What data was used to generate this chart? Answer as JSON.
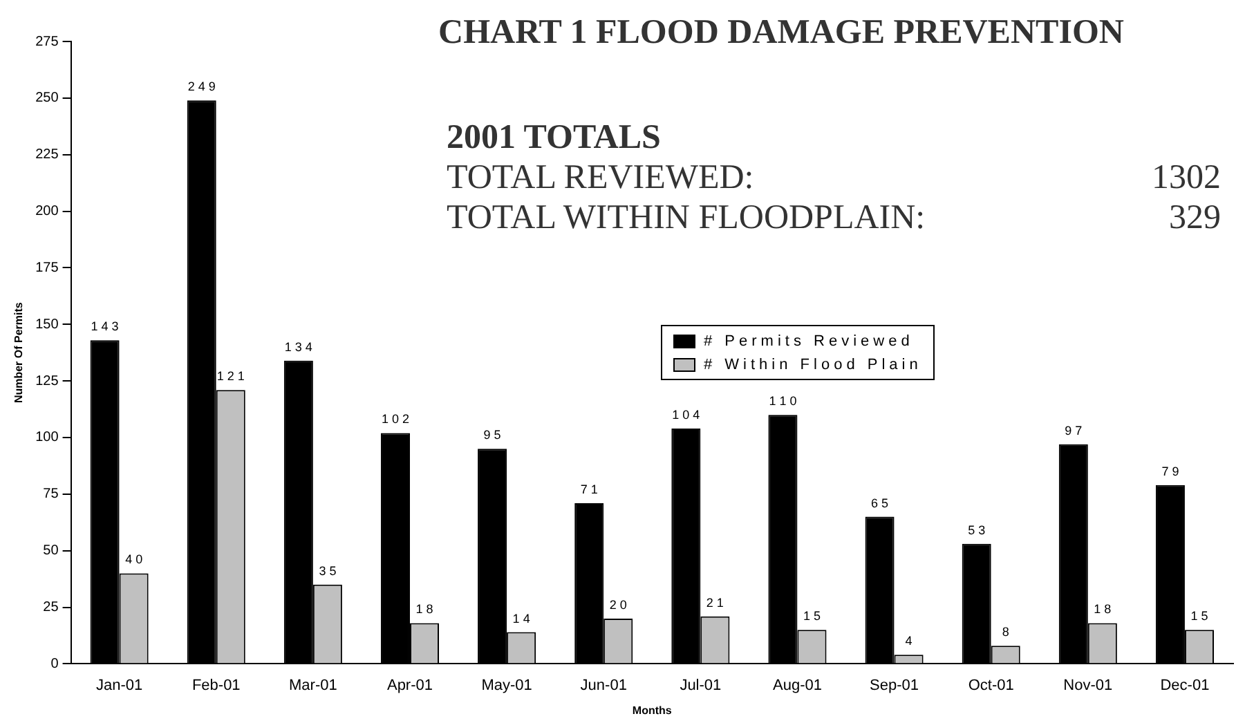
{
  "chart_data": {
    "type": "bar",
    "title": "CHART 1   FLOOD DAMAGE PREVENTION",
    "xlabel": "Months",
    "ylabel": "Number Of Permits",
    "annotations": [
      "2001 TOTALS",
      "TOTAL REVIEWED:",
      "1302",
      "TOTAL WITHIN FLOODPLAIN:",
      "329"
    ],
    "categories": [
      "Jan-01",
      "Feb-01",
      "Mar-01",
      "Apr-01",
      "May-01",
      "Jun-01",
      "Jul-01",
      "Aug-01",
      "Sep-01",
      "Oct-01",
      "Nov-01",
      "Dec-01"
    ],
    "series": [
      {
        "name": "# Permits Reviewed",
        "color": "#000000",
        "values": [
          143,
          249,
          134,
          102,
          95,
          71,
          104,
          110,
          65,
          53,
          97,
          79
        ]
      },
      {
        "name": "# Within Flood Plain",
        "color": "#c0c0c0",
        "values": [
          40,
          121,
          35,
          18,
          14,
          20,
          21,
          15,
          4,
          8,
          18,
          15
        ]
      }
    ],
    "ylim": [
      0,
      275
    ],
    "yticks": [
      0,
      25,
      50,
      75,
      100,
      125,
      150,
      175,
      200,
      225,
      250,
      275
    ],
    "grid": false,
    "legend": "top",
    "data_labels": true
  }
}
